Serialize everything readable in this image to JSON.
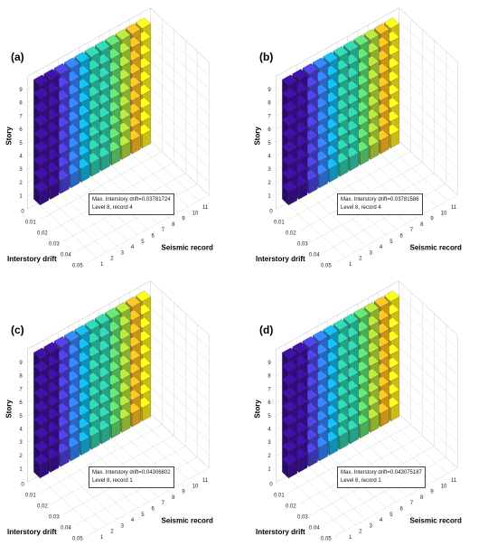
{
  "chart_data": [
    {
      "type": "bar3d",
      "panel_label": "(a)",
      "xlabel": "Seismic record",
      "ylabel": "Interstory drift",
      "zlabel": "Story",
      "x_ticks": [
        1,
        2,
        3,
        4,
        5,
        6,
        7,
        8,
        9,
        10,
        11
      ],
      "y_ticks": [
        0,
        0.01,
        0.02,
        0.03,
        0.04,
        0.05
      ],
      "z_ticks": [
        1,
        2,
        3,
        4,
        5,
        6,
        7,
        8,
        9
      ],
      "annotation": [
        "Max. Interstory drift=0.03781724",
        "Level 8, record 4"
      ]
    },
    {
      "type": "bar3d",
      "panel_label": "(b)",
      "xlabel": "Seismic record",
      "ylabel": "Interstory drift",
      "zlabel": "Story",
      "x_ticks": [
        1,
        2,
        3,
        4,
        5,
        6,
        7,
        8,
        9,
        10,
        11
      ],
      "y_ticks": [
        0,
        0.01,
        0.02,
        0.03,
        0.04,
        0.05
      ],
      "z_ticks": [
        1,
        2,
        3,
        4,
        5,
        6,
        7,
        8,
        9
      ],
      "annotation": [
        "Max. Interstory drift=0.03781586",
        "Level 8, record 4"
      ]
    },
    {
      "type": "bar3d",
      "panel_label": "(c)",
      "xlabel": "Seismic record",
      "ylabel": "Interstory drift",
      "zlabel": "Story",
      "x_ticks": [
        1,
        2,
        3,
        4,
        5,
        6,
        7,
        8,
        9,
        10,
        11
      ],
      "y_ticks": [
        0,
        0.01,
        0.02,
        0.03,
        0.04,
        0.05
      ],
      "z_ticks": [
        1,
        2,
        3,
        4,
        5,
        6,
        7,
        8,
        9
      ],
      "annotation": [
        "Max. Interstory drift=0.04306802",
        "Level 8, record 1"
      ]
    },
    {
      "type": "bar3d",
      "panel_label": "(d)",
      "xlabel": "Seismic record",
      "ylabel": "Interstory drift",
      "zlabel": "Story",
      "x_ticks": [
        1,
        2,
        3,
        4,
        5,
        6,
        7,
        8,
        9,
        10,
        11
      ],
      "y_ticks": [
        0,
        0.01,
        0.02,
        0.03,
        0.04,
        0.05
      ],
      "z_ticks": [
        1,
        2,
        3,
        4,
        5,
        6,
        7,
        8,
        9
      ],
      "annotation": [
        "Max. Interstory drift=0.043075187",
        "Level 8, record 1"
      ]
    }
  ],
  "colormap": [
    "#3b0f99",
    "#4b3dd6",
    "#2f7cf0",
    "#14aede",
    "#2cc6a5",
    "#5bd36b",
    "#a8d43a",
    "#f2b41f",
    "#f7e51a"
  ]
}
